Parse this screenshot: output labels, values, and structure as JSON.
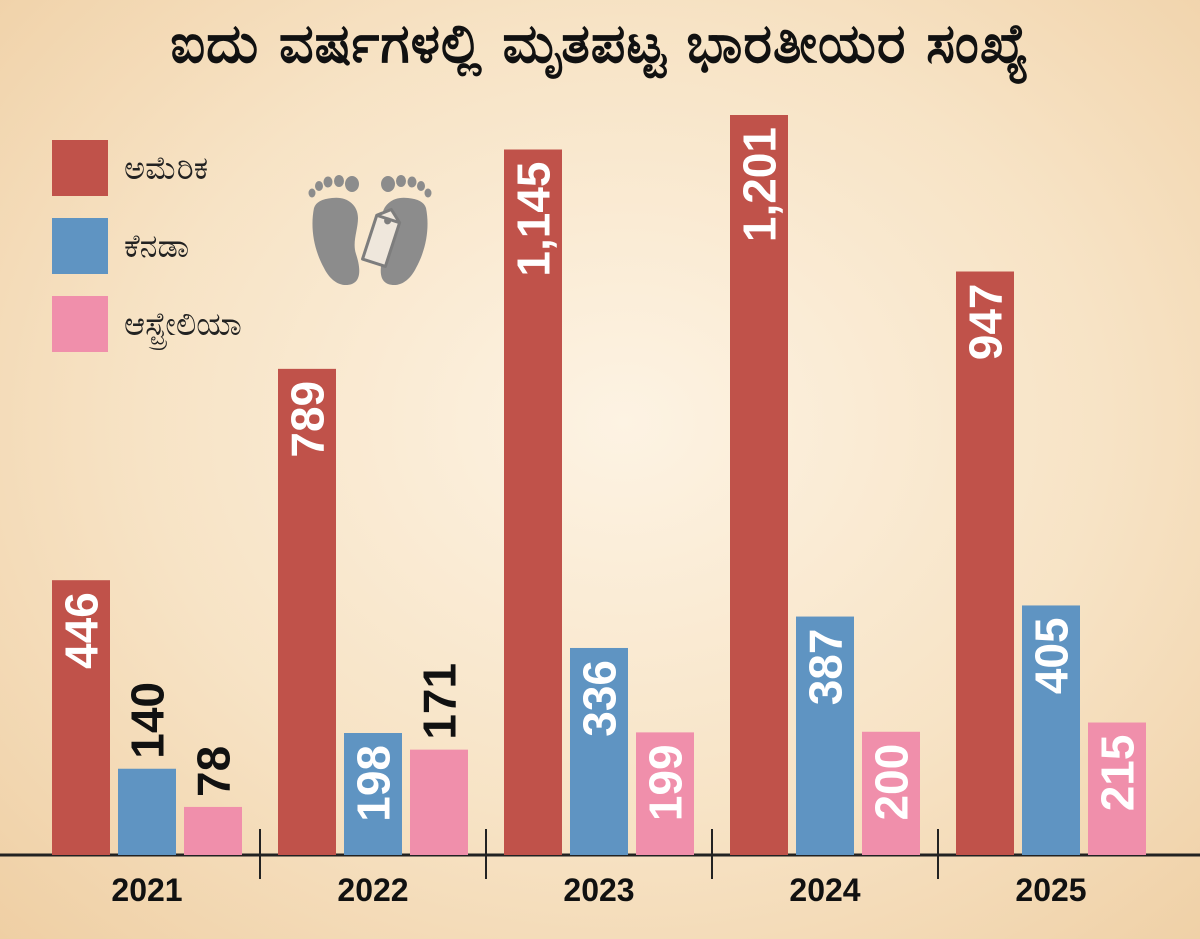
{
  "title": "ಐದು ವರ್ಷಗಳಲ್ಲಿ ಮೃತಪಟ್ಟ ಭಾರತೀಯರ ಸಂಖ್ಯೆ",
  "icon": "feet-with-tag-icon",
  "colors": {
    "america": "#c0524a",
    "canada": "#5f94c2",
    "australia": "#f08fab",
    "axis": "#222222",
    "label_light": "#ffffff",
    "label_dark": "#111111"
  },
  "chart_data": {
    "type": "bar",
    "title": "ಐದು ವರ್ಷಗಳಲ್ಲಿ ಮೃತಪಟ್ಟ ಭಾರತೀಯರ ಸಂಖ್ಯೆ",
    "categories": [
      "2021",
      "2022",
      "2023",
      "2024",
      "2025"
    ],
    "series": [
      {
        "name": "ಅಮೆರಿಕ",
        "color": "#c0524a",
        "values": [
          446,
          789,
          1145,
          1201,
          947
        ],
        "labels": [
          "446",
          "789",
          "1,145",
          "1,201",
          "947"
        ]
      },
      {
        "name": "ಕೆನಡಾ",
        "color": "#5f94c2",
        "values": [
          140,
          198,
          336,
          387,
          405
        ],
        "labels": [
          "140",
          "198",
          "336",
          "387",
          "405"
        ]
      },
      {
        "name": "ಆಸ್ಟ್ರೇಲಿಯಾ",
        "color": "#f08fab",
        "values": [
          78,
          171,
          199,
          200,
          215
        ],
        "labels": [
          "78",
          "171",
          "199",
          "200",
          "215"
        ]
      }
    ],
    "xlabel": "",
    "ylabel": "",
    "ylim": [
      0,
      1201
    ],
    "grid": false,
    "legend": "top-left"
  }
}
